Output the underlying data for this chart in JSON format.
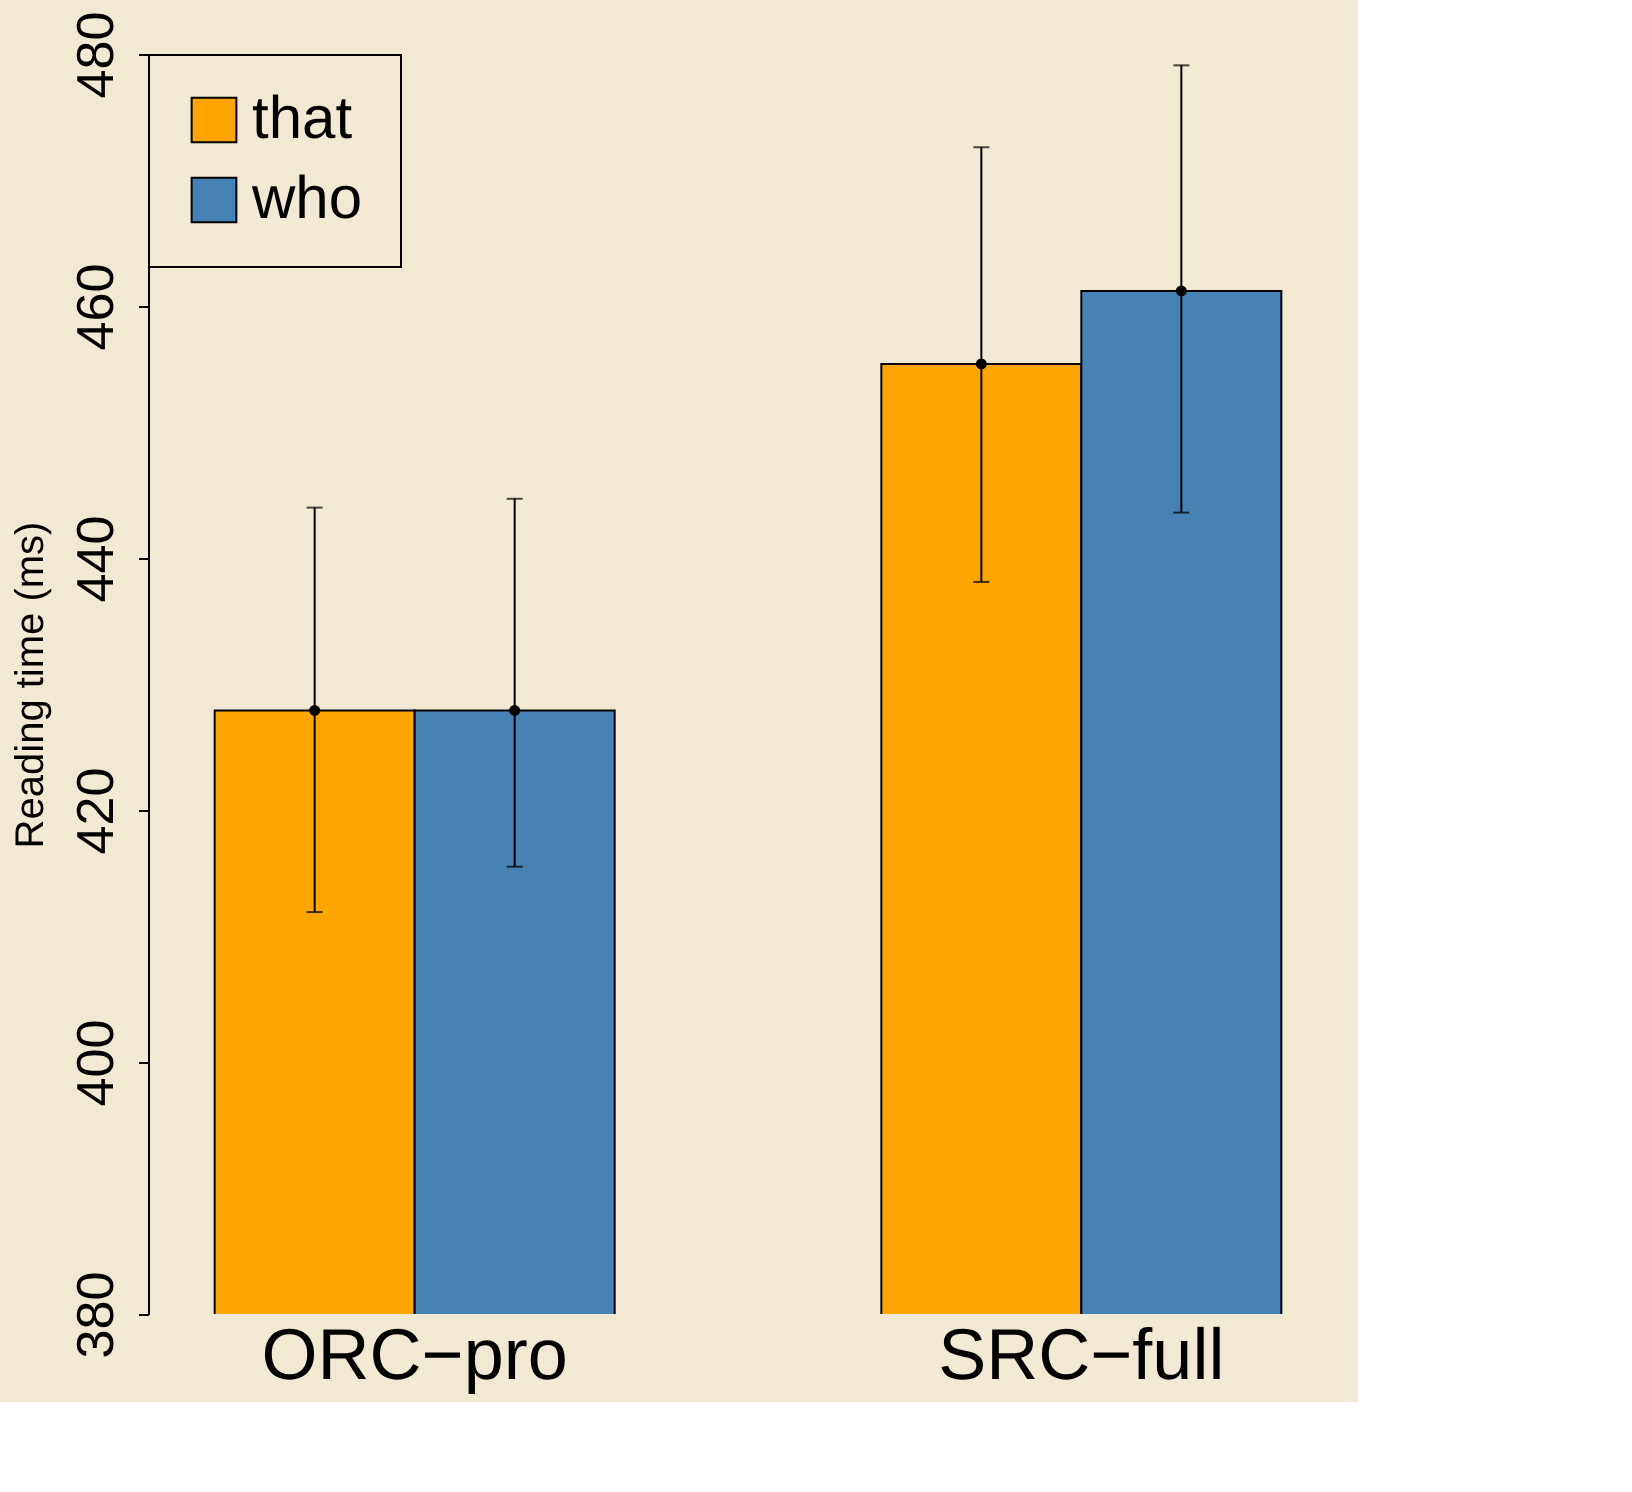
{
  "chart_data": {
    "type": "bar",
    "ylabel": "Reading time (ms)",
    "categories": [
      "ORC−pro",
      "SRC−full"
    ],
    "series": [
      {
        "name": "that",
        "color": "#ffa500",
        "values": [
          427.9,
          455.4
        ],
        "errors": [
          [
            411.9,
            444.0
          ],
          [
            438.1,
            472.6
          ]
        ]
      },
      {
        "name": "who",
        "color": "#4682b4",
        "values": [
          427.9,
          461.2
        ],
        "errors": [
          [
            415.5,
            444.7
          ],
          [
            443.6,
            479.1
          ]
        ]
      },
      {
        "type": "scatter",
        "color": "#000000",
        "x": [
          "ORC−pro",
          "SRC−full"
        ],
        "values": [
          427.9,
          455.4
        ],
        "marker": "circle"
      },
      {
        "type": "scatter",
        "color": "#000000",
        "x": [
          "ORC−pro",
          "SRC−full"
        ],
        "values": [
          427.9,
          461.2
        ],
        "marker": "circle"
      }
    ],
    "ylim": [
      380,
      480
    ],
    "yticks": [
      380,
      400,
      420,
      440,
      460,
      480
    ],
    "grid": false,
    "legend": "top left"
  }
}
